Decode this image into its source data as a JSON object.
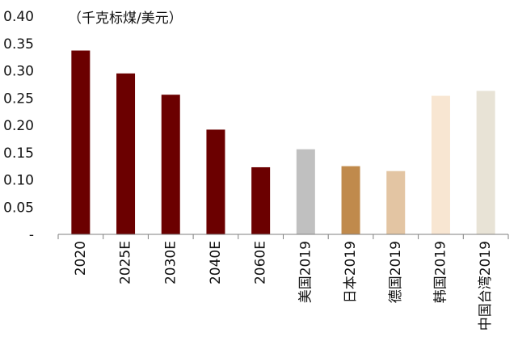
{
  "chart_data": {
    "type": "bar",
    "unit_label": "（千克标煤/美元）",
    "categories": [
      "2020",
      "2025E",
      "2030E",
      "2040E",
      "2060E",
      "美国2019",
      "日本2019",
      "德国2019",
      "韩国2019",
      "中国台湾2019"
    ],
    "values": [
      0.337,
      0.295,
      0.256,
      0.192,
      0.123,
      0.156,
      0.125,
      0.116,
      0.254,
      0.263
    ],
    "colors": [
      "#6b0000",
      "#6b0000",
      "#6b0000",
      "#6b0000",
      "#6b0000",
      "#c0c0c0",
      "#c08a4c",
      "#e3c5a3",
      "#f8e6d2",
      "#e8e3d6"
    ],
    "ylim": [
      0,
      0.4
    ],
    "yticks": [
      0,
      0.05,
      0.1,
      0.15,
      0.2,
      0.25,
      0.3,
      0.35,
      0.4
    ],
    "ytick_labels": [
      "-",
      "0.05",
      "0.10",
      "0.15",
      "0.20",
      "0.25",
      "0.30",
      "0.35",
      "0.40"
    ],
    "grid": false
  }
}
